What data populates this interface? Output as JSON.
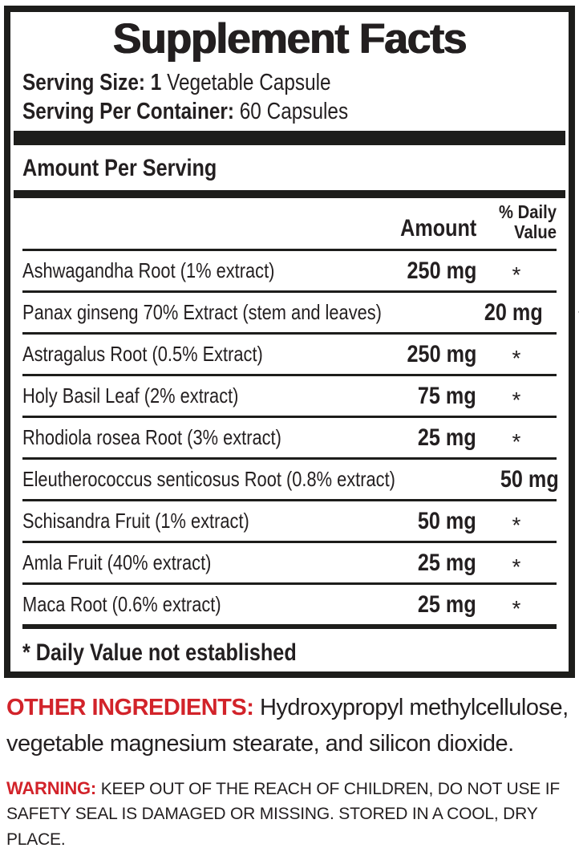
{
  "colors": {
    "black": "#1d1d1b",
    "red": "#d2232a",
    "background": "#ffffff"
  },
  "label": {
    "title": "Supplement Facts",
    "serving_size": {
      "bold": "Serving Size: 1",
      "regular": "Vegetable Capsule"
    },
    "servings_per_container": {
      "bold": "Serving Per Container:",
      "regular": "60 Capsules"
    },
    "section_header": "Amount Per Serving",
    "columns": {
      "amount": "Amount",
      "daily_value": "% Daily Value"
    },
    "rows": [
      {
        "name": "Ashwagandha Root (1% extract)",
        "amount": "250 mg",
        "dv": "*"
      },
      {
        "name": "Panax ginseng 70% Extract (stem and leaves)",
        "amount": "20 mg",
        "dv": "*"
      },
      {
        "name": "Astragalus Root (0.5% Extract)",
        "amount": "250 mg",
        "dv": "*"
      },
      {
        "name": "Holy Basil Leaf (2% extract)",
        "amount": "75 mg",
        "dv": "*"
      },
      {
        "name": "Rhodiola rosea Root (3% extract)",
        "amount": "25 mg",
        "dv": "*"
      },
      {
        "name": "Eleutherococcus senticosus Root (0.8% extract)",
        "amount": "50 mg",
        "dv": "*"
      },
      {
        "name": "Schisandra Fruit (1% extract)",
        "amount": "50 mg",
        "dv": "*"
      },
      {
        "name": "Amla Fruit (40% extract)",
        "amount": "25 mg",
        "dv": "*"
      },
      {
        "name": "Maca Root (0.6% extract)",
        "amount": "25 mg",
        "dv": "*"
      }
    ],
    "footnote": "* Daily Value not established"
  },
  "other_ingredients": {
    "label": "OTHER INGREDIENTS:",
    "text": "Hydroxypropyl methylcellulose, vegetable magnesium stearate, and silicon dioxide."
  },
  "warning": {
    "label": "WARNING:",
    "text": "KEEP OUT OF THE REACH OF CHILDREN, DO NOT USE  IF SAFETY  SEAL  IS DAMAGED  OR MISSING. STORED IN A COOL, DRY PLACE."
  }
}
